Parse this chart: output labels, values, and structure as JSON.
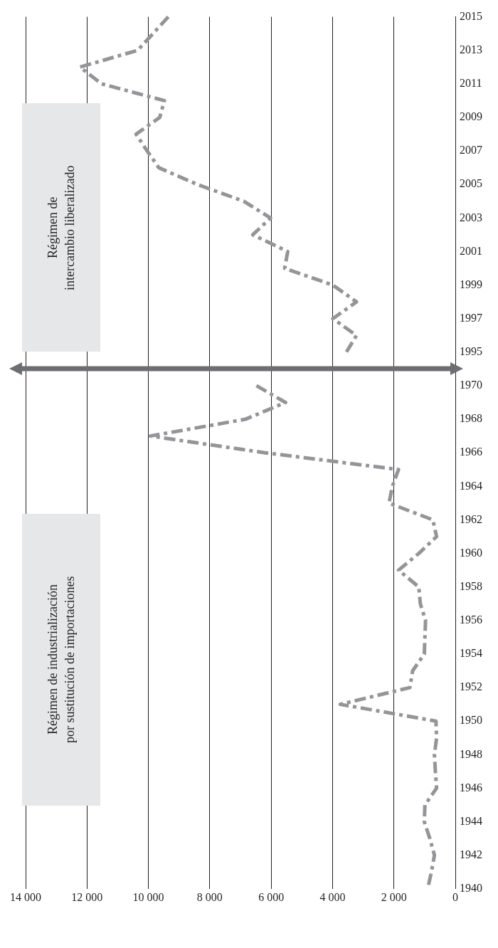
{
  "chart_data": {
    "type": "line",
    "orientation": "horizontal",
    "categories": [
      "2015",
      null,
      "2013",
      null,
      "2011",
      null,
      "2009",
      null,
      "2007",
      null,
      "2005",
      null,
      "2003",
      null,
      "2001",
      null,
      "1999",
      null,
      "1997",
      null,
      "1995",
      null,
      "1970",
      null,
      "1968",
      null,
      "1966",
      null,
      "1964",
      null,
      "1962",
      null,
      "1960",
      null,
      "1958",
      null,
      "1956",
      null,
      "1954",
      null,
      "1952",
      null,
      "1950",
      null,
      "1948",
      null,
      "1946",
      null,
      "1944",
      null,
      "1942",
      null,
      "1940"
    ],
    "series": [
      {
        "color": "#939598",
        "values": [
          9350,
          9850,
          10350,
          12230,
          11520,
          9480,
          9630,
          10400,
          10040,
          9660,
          8400,
          6890,
          6020,
          6600,
          5460,
          5560,
          3990,
          3220,
          3990,
          3220,
          3550,
          null,
          6480,
          5530,
          6840,
          9940,
          6190,
          1850,
          2050,
          2160,
          730,
          610,
          1190,
          1850,
          1190,
          1140,
          970,
          990,
          1010,
          1390,
          1480,
          3750,
          630,
          610,
          680,
          650,
          610,
          990,
          1010,
          830,
          680,
          780,
          900
        ]
      }
    ],
    "xlim": [
      14000,
      0
    ],
    "xticks": [
      {
        "value": 0,
        "label": "0"
      },
      {
        "value": 2000,
        "label": "2 000"
      },
      {
        "value": 4000,
        "label": "4 000"
      },
      {
        "value": 6000,
        "label": "6 000"
      },
      {
        "value": 8000,
        "label": "8 000"
      },
      {
        "value": 10000,
        "label": "10 000"
      },
      {
        "value": 12000,
        "label": "12 000"
      },
      {
        "value": 14000,
        "label": "14 000"
      }
    ],
    "grid": "x",
    "legend": false,
    "marker": "none",
    "line_style": "dashed",
    "annotations": [
      "Régimen de industrialización por sustitución de importaciones",
      "Régimen de intercambio liberalizado"
    ]
  }
}
